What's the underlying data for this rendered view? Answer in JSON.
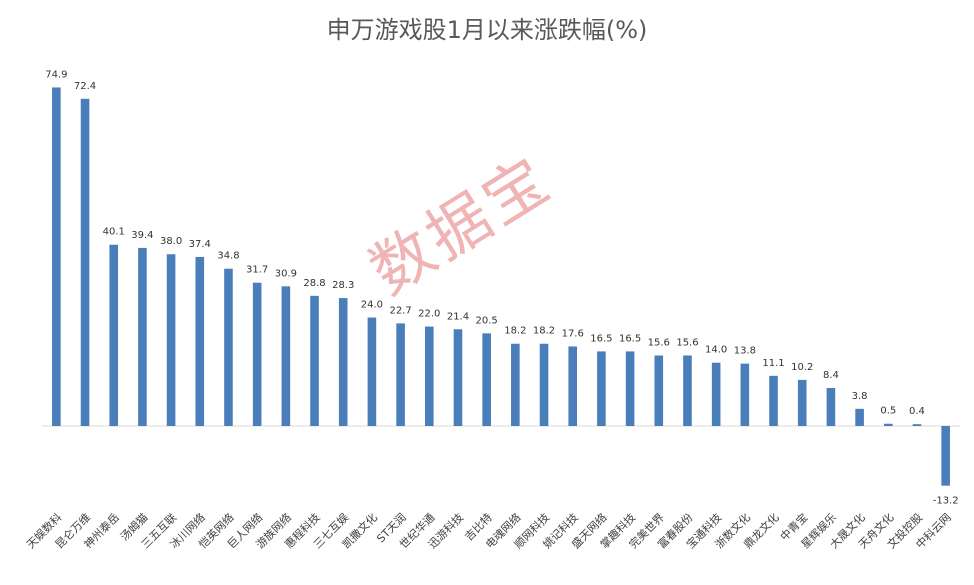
{
  "chart_data": {
    "type": "bar",
    "title": "申万游戏股1月以来涨跌幅(%)",
    "xlabel": "",
    "ylabel": "",
    "ylim": [
      -16,
      80
    ],
    "grid": false,
    "legend": "none",
    "bar_color": "#4a7ebb",
    "categories": [
      "天娱数科",
      "昆仑万维",
      "神州泰岳",
      "汤姆猫",
      "三五互联",
      "冰川网络",
      "恺英网络",
      "巨人网络",
      "游族网络",
      "惠程科技",
      "三七互娱",
      "凯撒文化",
      "ST天润",
      "世纪华通",
      "迅游科技",
      "吉比特",
      "电魂网络",
      "顺网科技",
      "姚记科技",
      "盛天网络",
      "掌趣科技",
      "完美世界",
      "富春股份",
      "宝通科技",
      "浙数文化",
      "鼎龙文化",
      "中青宝",
      "星辉娱乐",
      "大晟文化",
      "天舟文化",
      "文投控股",
      "中科云网"
    ],
    "values": [
      74.9,
      72.4,
      40.1,
      39.4,
      38.0,
      37.4,
      34.8,
      31.7,
      30.9,
      28.8,
      28.3,
      24.0,
      22.7,
      22.0,
      21.4,
      20.5,
      18.2,
      18.2,
      17.6,
      16.5,
      16.5,
      15.6,
      15.6,
      14.0,
      13.8,
      11.1,
      10.2,
      8.4,
      3.8,
      0.5,
      0.4,
      -13.2
    ],
    "value_labels": [
      "74.9",
      "72.4",
      "40.1",
      "39.4",
      "38.0",
      "37.4",
      "34.8",
      "31.7",
      "30.9",
      "28.8",
      "28.3",
      "24.0",
      "22.7",
      "22.0",
      "21.4",
      "20.5",
      "18.2",
      "18.2",
      "17.6",
      "16.5",
      "16.5",
      "15.6",
      "15.6",
      "14.0",
      "13.8",
      "11.1",
      "10.2",
      "8.4",
      "3.8",
      "0.5",
      "0.4",
      "-13.2"
    ]
  },
  "watermark": "数据宝"
}
